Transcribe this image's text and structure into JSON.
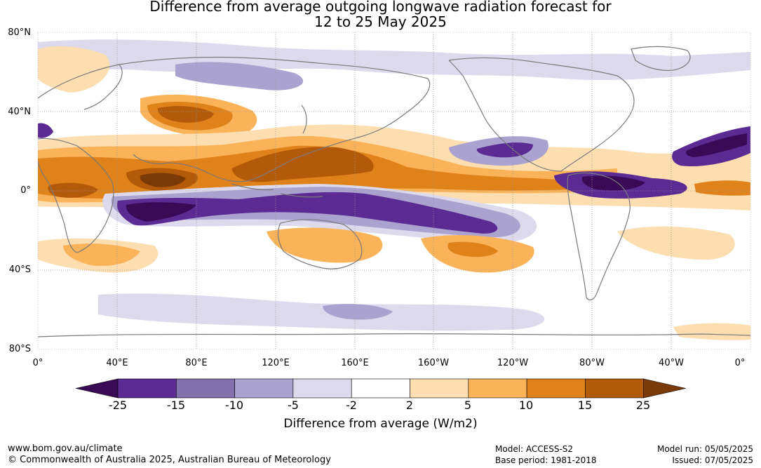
{
  "title": {
    "line1": "Difference from average outgoing longwave radiation forecast for",
    "line2": "12 to 25 May 2025"
  },
  "map": {
    "lat_labels": [
      "80°N",
      "40°N",
      "0°",
      "40°S",
      "80°S"
    ],
    "lon_labels": [
      "0°",
      "40°E",
      "80°E",
      "120°E",
      "160°E",
      "160°W",
      "120°W",
      "80°W",
      "40°W",
      "0°"
    ],
    "colors": {
      "coast": "#7a7a7a",
      "grid": "#9a9a9a"
    }
  },
  "colorbar": {
    "label": "Difference from average (W/m2)",
    "tick_labels": [
      "-25",
      "-15",
      "-10",
      "-5",
      "-2",
      "2",
      "5",
      "10",
      "15",
      "25"
    ],
    "colors": [
      "#3a0a56",
      "#5b2a92",
      "#8271ad",
      "#aba3cf",
      "#dcdaec",
      "#ffffff",
      "#fddeb0",
      "#fbb35a",
      "#e0821a",
      "#b35a0a",
      "#7a3a08"
    ]
  },
  "footer": {
    "url": "www.bom.gov.au/climate",
    "copyright": "© Commonwealth of Australia 2025, Australian Bureau of Meteorology",
    "model": "Model: ACCESS-S2",
    "base_period": "Base period: 1981-2018",
    "model_run": "Model run: 05/05/2025",
    "issued": "Issued: 07/05/2025"
  }
}
